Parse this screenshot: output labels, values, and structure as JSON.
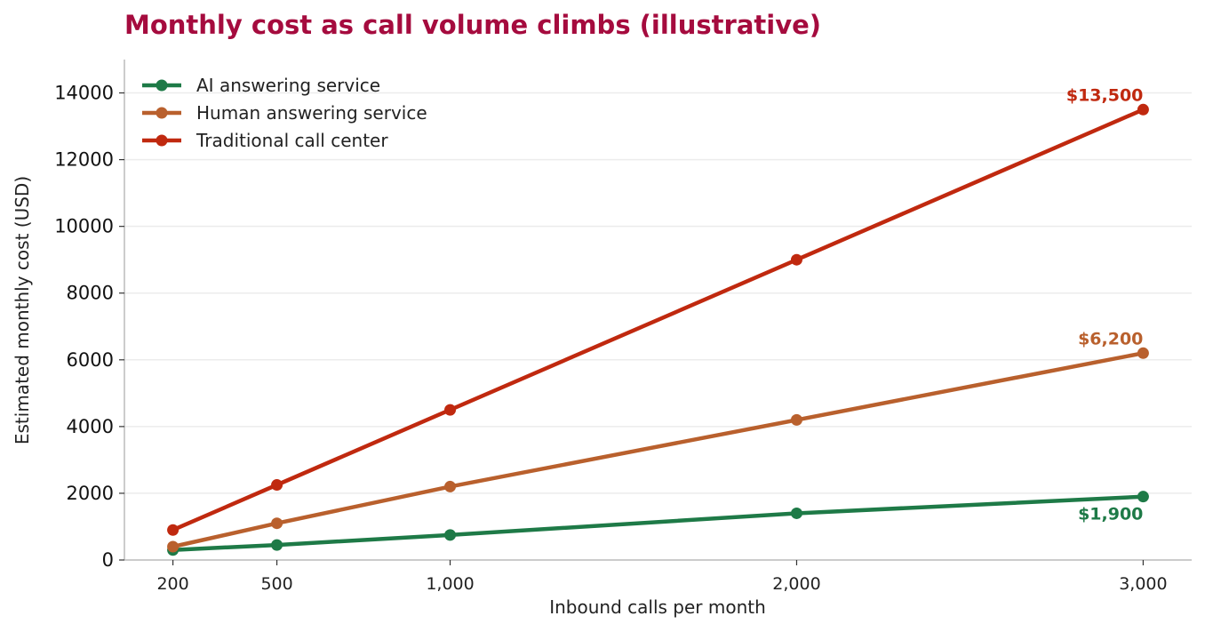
{
  "chart_data": {
    "type": "line",
    "title": "Monthly cost as call volume climbs (illustrative)",
    "title_color": "#A50B3E",
    "xlabel": "Inbound calls per month",
    "ylabel": "Estimated monthly cost (USD)",
    "x": [
      200,
      500,
      1000,
      2000,
      3000
    ],
    "x_tick_labels": [
      "200",
      "500",
      "1,000",
      "2,000",
      "3,000"
    ],
    "xlim": [
      60,
      3140
    ],
    "ylim": [
      0,
      15000
    ],
    "y_ticks": [
      0,
      2000,
      4000,
      6000,
      8000,
      10000,
      12000,
      14000
    ],
    "y_tick_labels": [
      "0",
      "2000",
      "4000",
      "6000",
      "8000",
      "10000",
      "12000",
      "14000"
    ],
    "grid": "horizontal",
    "legend_position": "top-left",
    "series": [
      {
        "name": "AI answering service",
        "color": "#1E7A47",
        "values": [
          300,
          450,
          750,
          1400,
          1900
        ]
      },
      {
        "name": "Human answering service",
        "color": "#B9602D",
        "values": [
          400,
          1100,
          2200,
          4200,
          6200
        ]
      },
      {
        "name": "Traditional call center",
        "color": "#C0290F",
        "values": [
          900,
          2250,
          4500,
          9000,
          13500
        ]
      }
    ],
    "annotations": [
      {
        "text": "$13,500",
        "series": 2,
        "position": "above"
      },
      {
        "text": "$6,200",
        "series": 1,
        "position": "above"
      },
      {
        "text": "$1,900",
        "series": 0,
        "position": "below"
      }
    ]
  }
}
